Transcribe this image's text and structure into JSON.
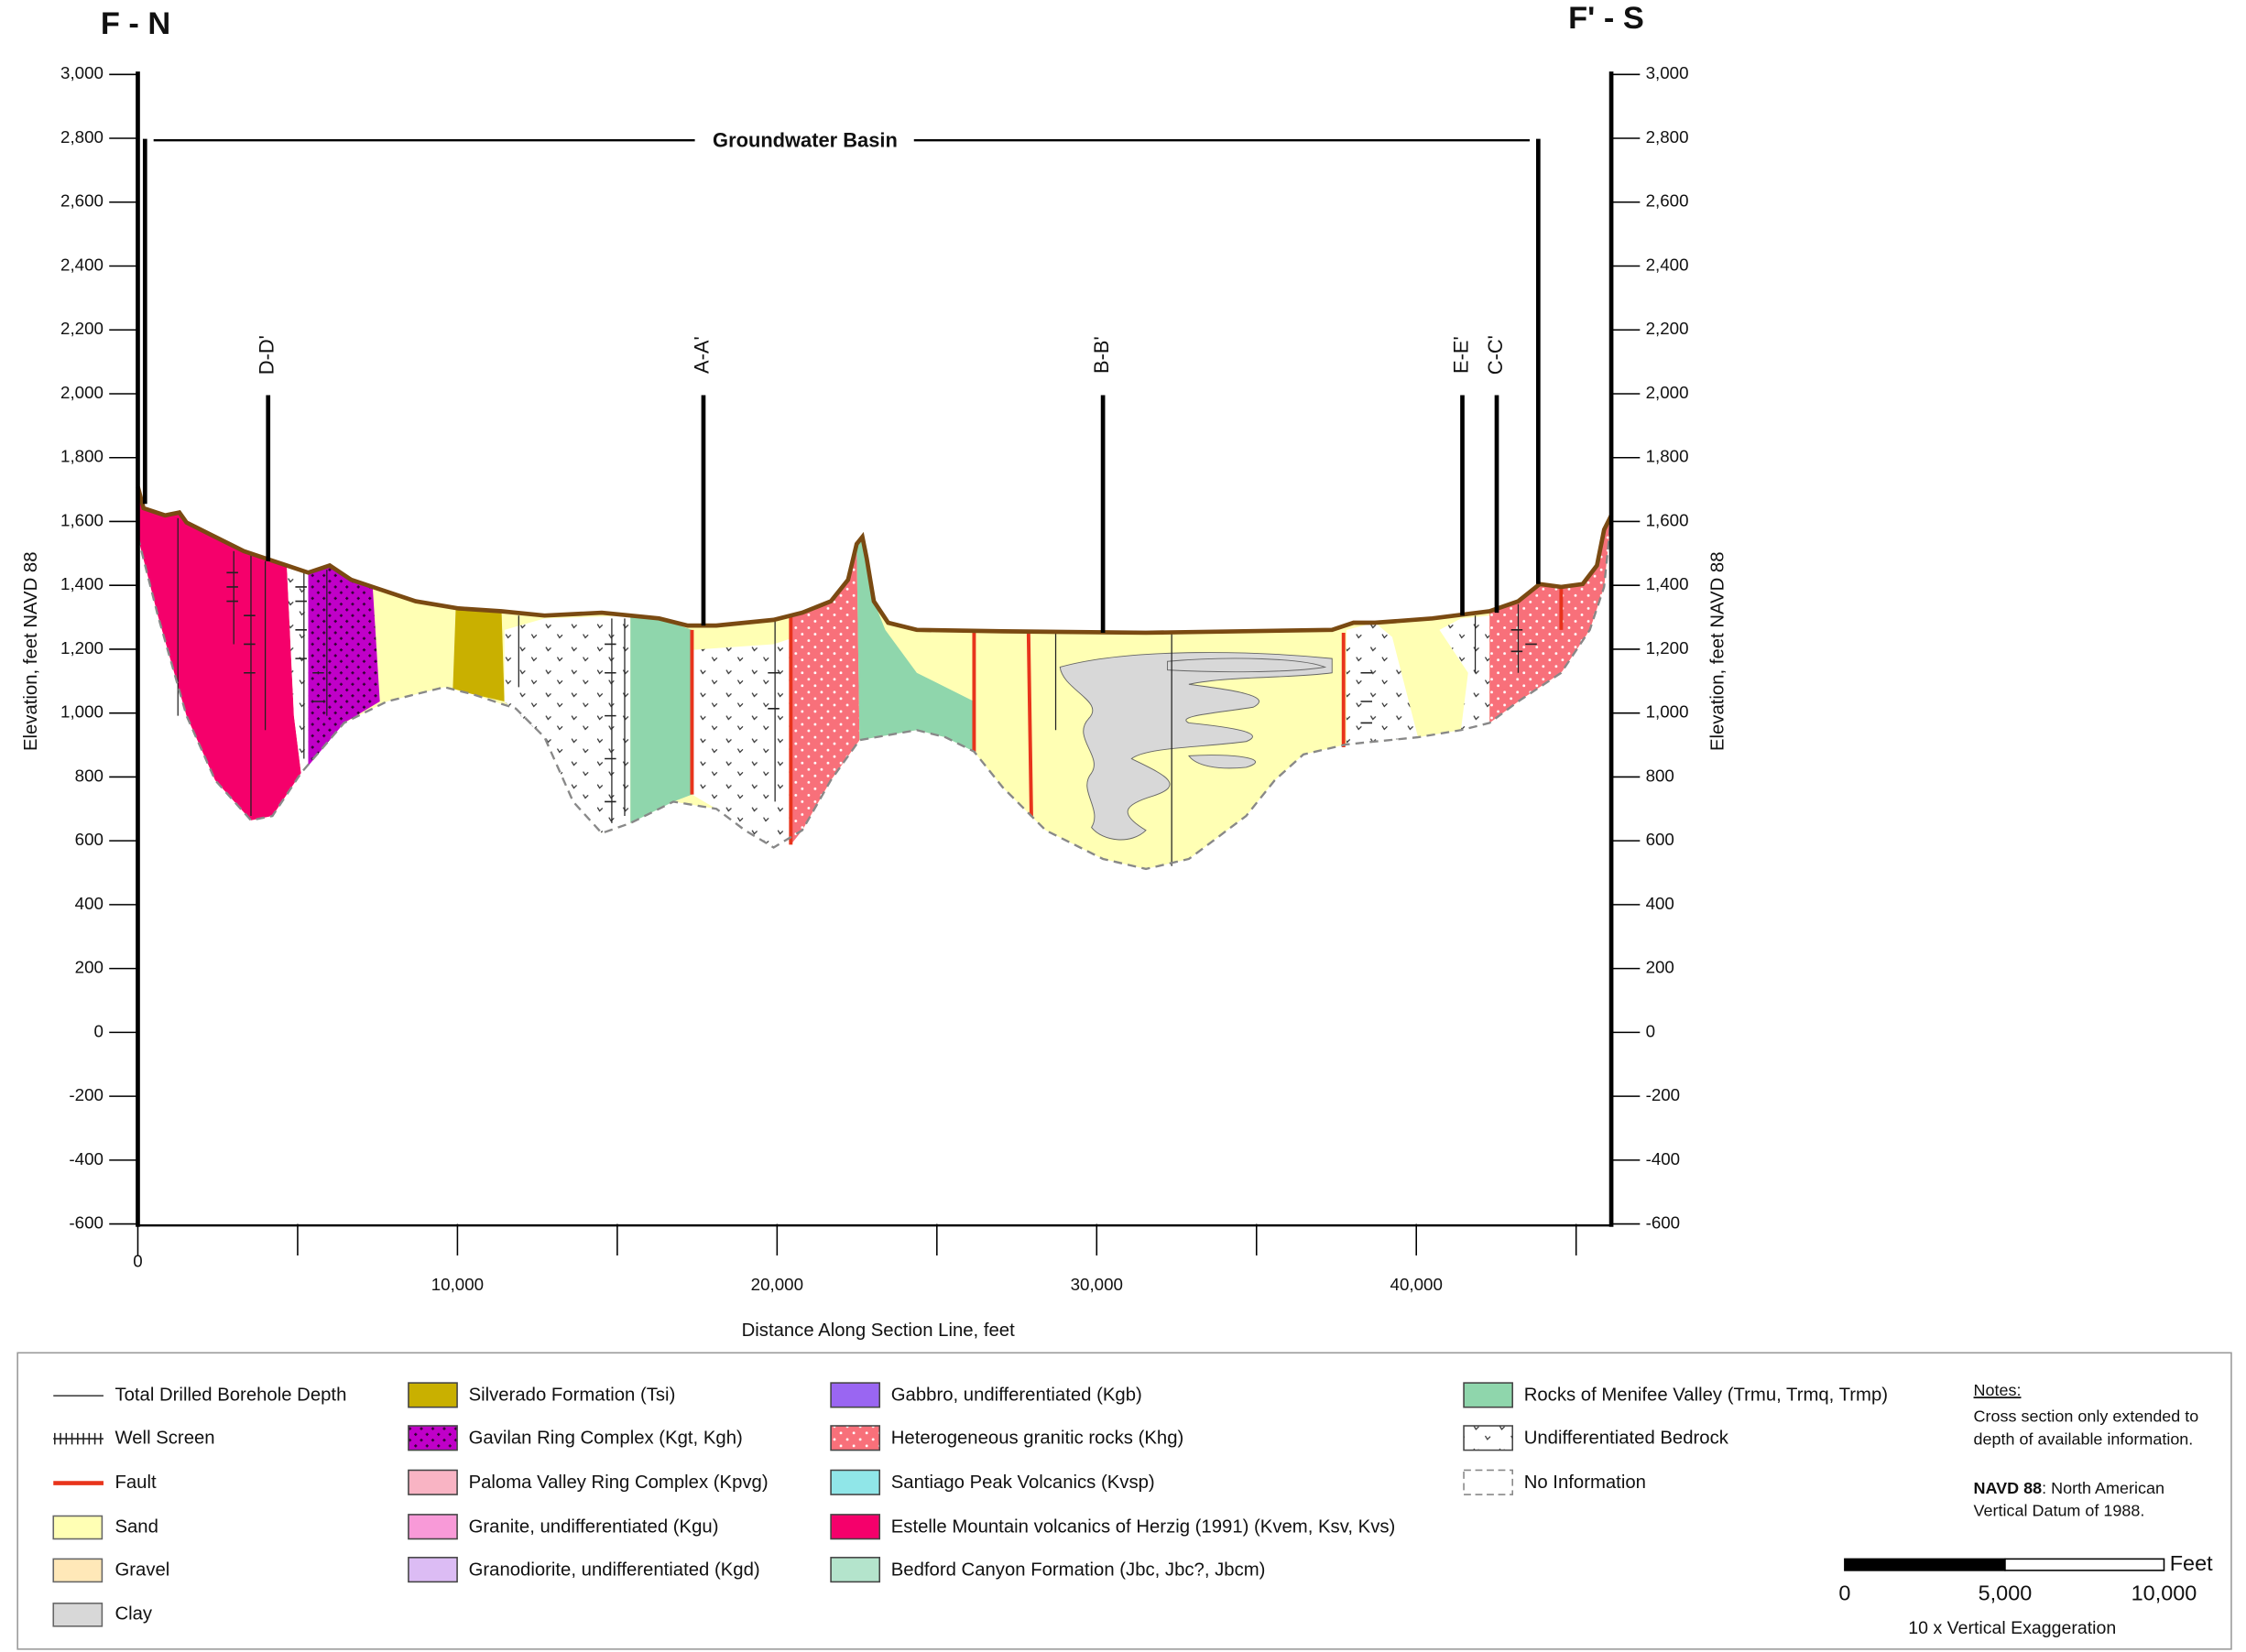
{
  "titles": {
    "left": "F - N",
    "right": "F' - S"
  },
  "axes": {
    "y_label": "Elevation, feet NAVD 88",
    "x_label": "Distance Along Section Line, feet",
    "ylim": [
      -600,
      3000
    ],
    "yticks": [
      {
        "value": -600,
        "label": "-600"
      },
      {
        "value": -400,
        "label": "-400"
      },
      {
        "value": -200,
        "label": "-200"
      },
      0,
      200,
      400,
      600,
      800,
      {
        "value": 1000,
        "label": "1,000"
      },
      {
        "value": 1200,
        "label": "1,200"
      },
      {
        "value": 1400,
        "label": "1,400"
      },
      {
        "value": 1600,
        "label": "1,600"
      },
      {
        "value": 1800,
        "label": "1,800"
      },
      {
        "value": 2000,
        "label": "2,000"
      },
      {
        "value": 2200,
        "label": "2,200"
      },
      {
        "value": 2400,
        "label": "2,400"
      },
      {
        "value": 2600,
        "label": "2,600"
      },
      {
        "value": 2800,
        "label": "2,800"
      },
      {
        "value": 3000,
        "label": "3,000"
      }
    ],
    "xlim": [
      0,
      46100
    ],
    "xticks": [
      0,
      {
        "value": 10000,
        "label": "10,000"
      },
      {
        "value": 20000,
        "label": "20,000"
      },
      {
        "value": 30000,
        "label": "30,000"
      },
      {
        "value": 40000,
        "label": "40,000"
      }
    ],
    "x_minor_ticks": [
      5000,
      15000,
      25000,
      35000,
      45000
    ]
  },
  "basin_label": "Groundwater Basin",
  "sections": [
    "D-D'",
    "A-A'",
    "B-B'",
    "E-E'",
    "C-C'"
  ],
  "legend": {
    "items": [
      "Total Drilled Borehole Depth",
      "Well Screen",
      "Fault",
      "Sand",
      "Gravel",
      "Clay",
      "Silverado Formation (Tsi)",
      "Gavilan Ring Complex (Kgt, Kgh)",
      "Paloma Valley Ring Complex (Kpvg)",
      "Granite, undifferentiated (Kgu)",
      "Granodiorite, undifferentiated (Kgd)",
      "Gabbro, undifferentiated (Kgb)",
      "Heterogeneous granitic rocks (Khg)",
      "Santiago Peak Volcanics (Kvsp)",
      "Estelle Mountain volcanics of Herzig (1991) (Kvem, Ksv, Kvs)",
      "Bedford Canyon Formation (Jbc, Jbc?,  Jbcm)",
      "Rocks of Menifee Valley (Trmu, Trmq, Trmp)",
      "Undifferentiated Bedrock",
      "No Information"
    ],
    "notes": {
      "heading": "Notes:",
      "lines": [
        "Cross section only extended to",
        "depth of available information."
      ],
      "datum_term": "NAVD 88",
      "datum_lines": [
        ": North American",
        "Vertical Datum of 1988."
      ]
    },
    "scale_bar": {
      "unit": "Feet",
      "labels": [
        "0",
        "5,000",
        "10,000"
      ],
      "exaggeration": "10 x Vertical Exaggeration"
    }
  }
}
